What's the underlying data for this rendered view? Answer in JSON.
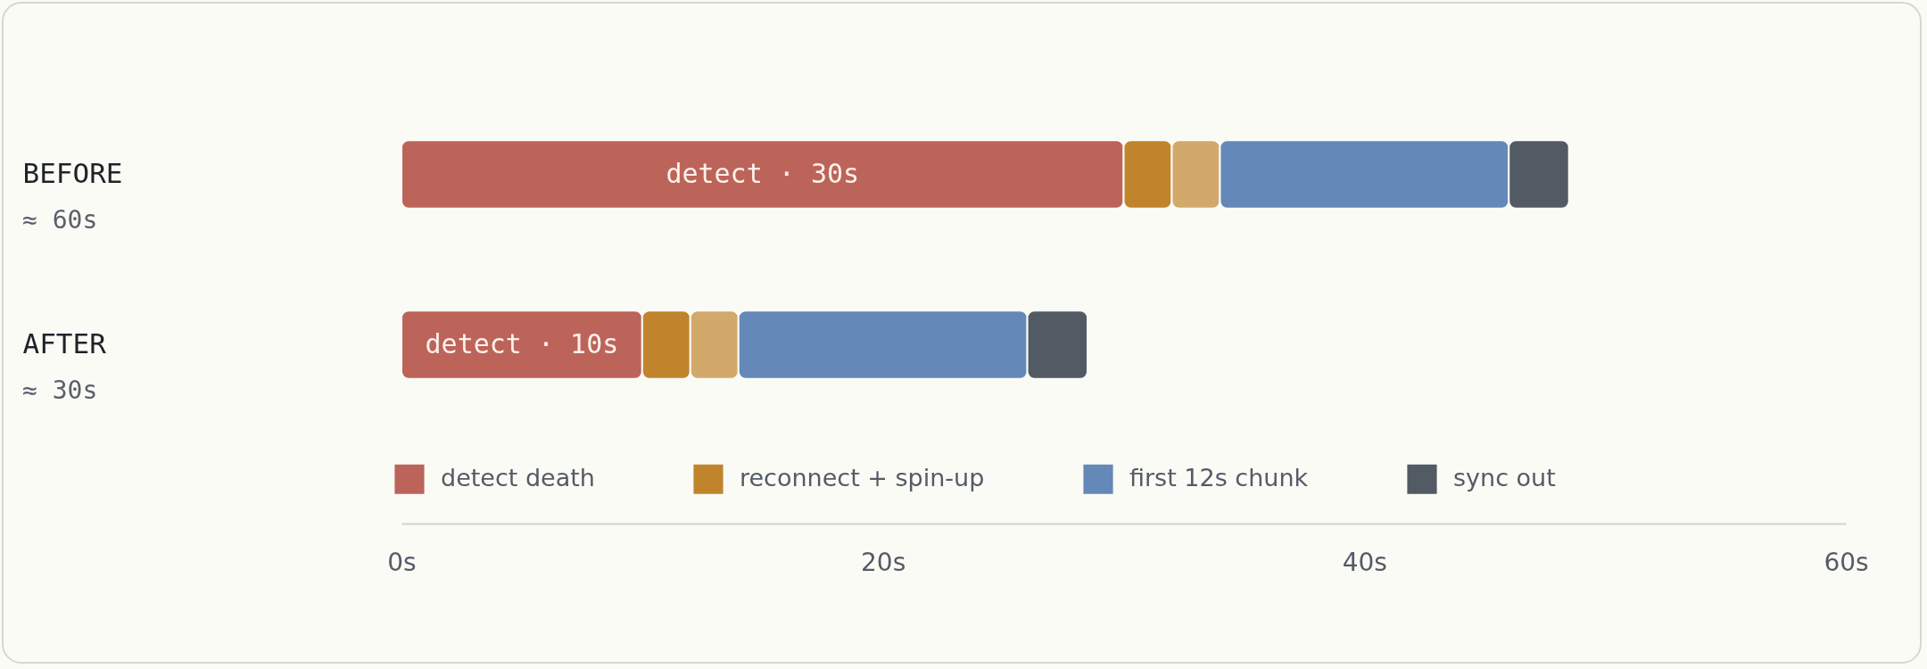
{
  "chart_data": {
    "type": "bar",
    "orientation": "horizontal",
    "stacked": true,
    "categories": [
      "BEFORE",
      "AFTER"
    ],
    "series": [
      {
        "name": "detect death",
        "color": "#bc645a",
        "values": [
          30,
          10
        ],
        "value_labels": [
          "detect · 30s",
          "detect · 10s"
        ]
      },
      {
        "name": "reconnect + spin-up",
        "color": "#c0852c",
        "values": [
          2,
          2
        ]
      },
      {
        "color": "#d3a96b",
        "values": [
          2,
          2
        ]
      },
      {
        "name": "first 12s chunk",
        "color": "#6489b8",
        "values": [
          12,
          12
        ]
      },
      {
        "name": "sync out",
        "color": "#525a63",
        "values": [
          2.5,
          2.5
        ]
      }
    ],
    "xlim": [
      0,
      60
    ],
    "xticks": [
      {
        "value": 0,
        "label": "0s"
      },
      {
        "value": 20,
        "label": "20s"
      },
      {
        "value": 40,
        "label": "40s"
      },
      {
        "value": 60,
        "label": "60s"
      }
    ],
    "legend": "bottom",
    "annotations": [
      "≈ 60s",
      "≈ 30s"
    ]
  }
}
